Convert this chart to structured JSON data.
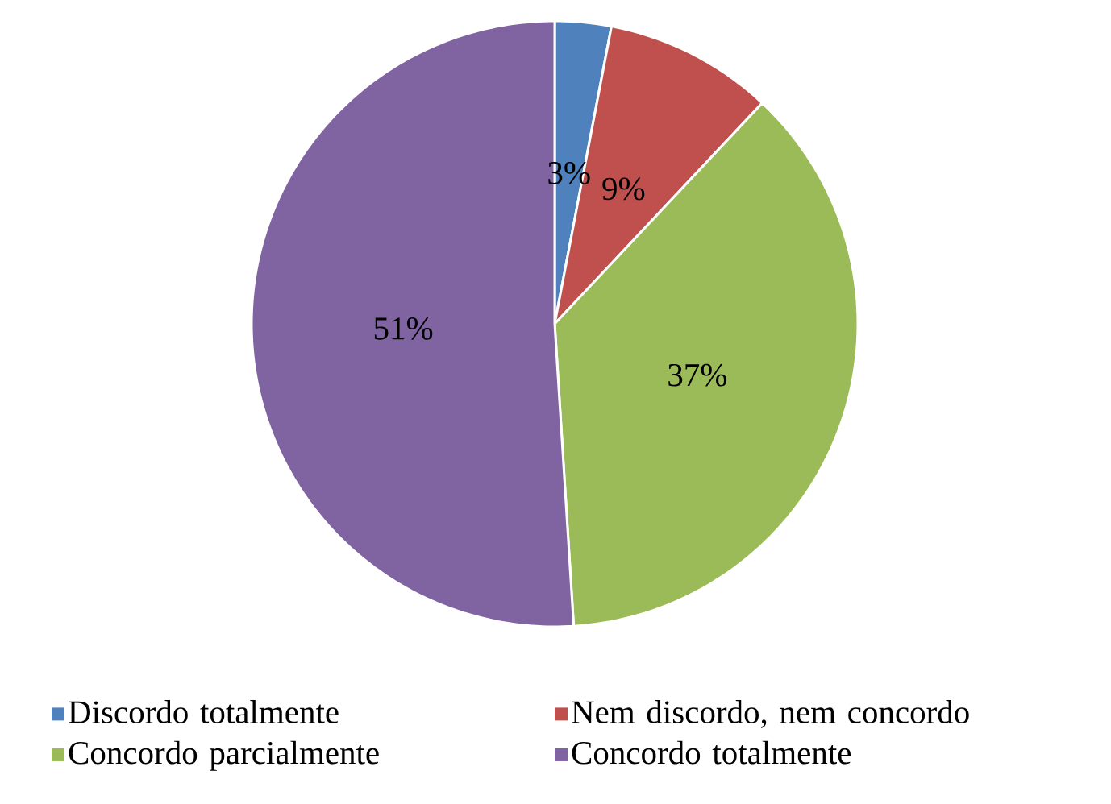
{
  "chart_data": {
    "type": "pie",
    "categories": [
      "Discordo totalmente",
      "Nem discordo, nem concordo",
      "Concordo parcialmente",
      "Concordo totalmente"
    ],
    "values": [
      3,
      9,
      37,
      51
    ],
    "colors": [
      "#4f81bd",
      "#c0504d",
      "#9bbb59",
      "#8064a2"
    ],
    "value_labels": [
      "3%",
      "9%",
      "37%",
      "51%"
    ],
    "legend": "bottom"
  }
}
